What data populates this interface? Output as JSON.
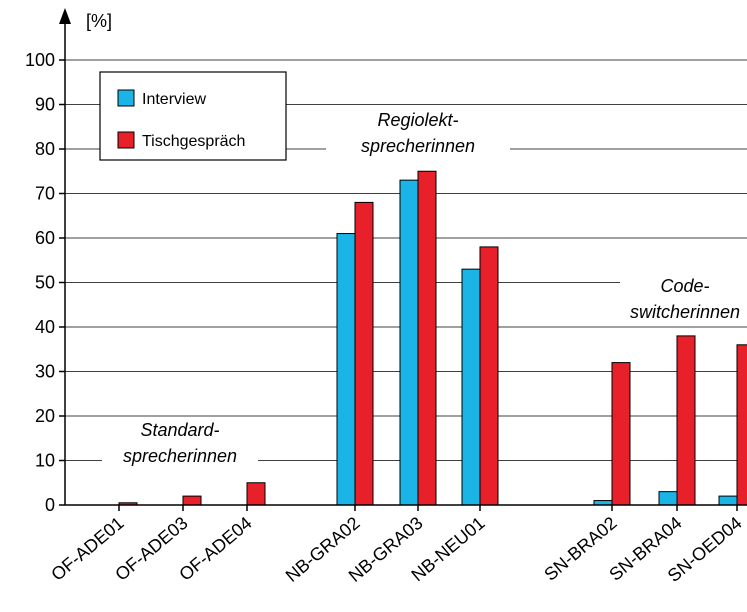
{
  "chart_data": {
    "type": "bar",
    "y_unit": "[%]",
    "ylim": [
      0,
      100
    ],
    "yticks": [
      0,
      10,
      20,
      30,
      40,
      50,
      60,
      70,
      80,
      90,
      100
    ],
    "grid": true,
    "legend_position": "top-left",
    "categories": [
      "OF-ADE01",
      "OF-ADE03",
      "OF-ADE04",
      "NB-GRA02",
      "NB-GRA03",
      "NB-NEU01",
      "SN-BRA02",
      "SN-BRA04",
      "SN-OED04"
    ],
    "series": [
      {
        "name": "Interview",
        "color": "#1ab4e6",
        "values": [
          0,
          0,
          0,
          61,
          73,
          53,
          1,
          3,
          2
        ]
      },
      {
        "name": "Tischgespräch",
        "color": "#e8202a",
        "values": [
          0.5,
          2,
          5,
          68,
          75,
          58,
          32,
          38,
          36
        ]
      }
    ],
    "group_labels": [
      {
        "line1": "Standard-",
        "line2": "sprecherinnen"
      },
      {
        "line1": "Regiolekt-",
        "line2": "sprecherinnen"
      },
      {
        "line1": "Code-",
        "line2": "switcherinnen"
      }
    ]
  }
}
